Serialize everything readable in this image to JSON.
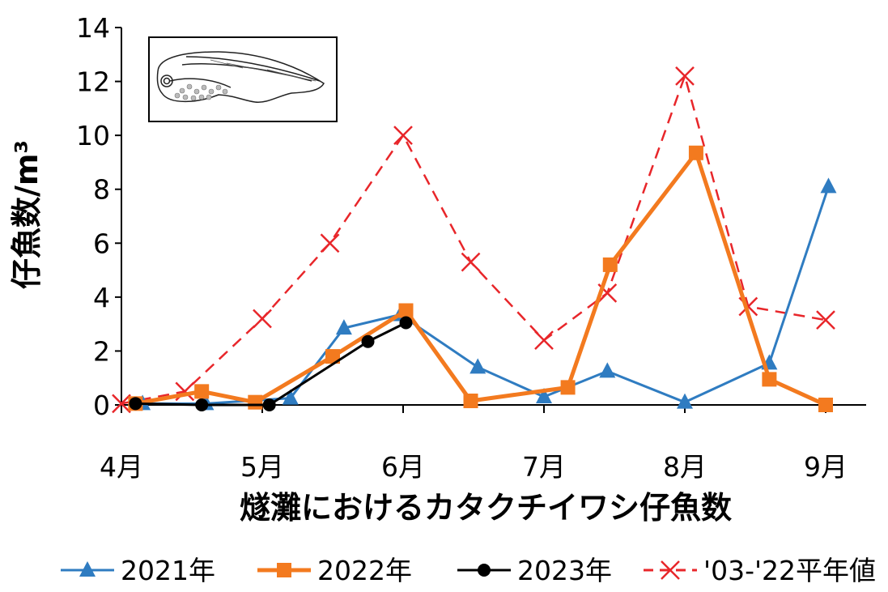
{
  "chart_data": {
    "type": "line",
    "title": "",
    "xlabel": "燧灘におけるカタクチイワシ仔魚数",
    "ylabel": "仔魚数/m³",
    "ylim": [
      0,
      14
    ],
    "yticks": [
      "0",
      "2",
      "4",
      "6",
      "8",
      "10",
      "12",
      "14"
    ],
    "xlim": [
      4,
      9
    ],
    "xticks": [
      {
        "value": 4,
        "label": "4月"
      },
      {
        "value": 5,
        "label": "5月"
      },
      {
        "value": 6,
        "label": "6月"
      },
      {
        "value": 7,
        "label": "7月"
      },
      {
        "value": 8,
        "label": "8月"
      },
      {
        "value": 9,
        "label": "9月"
      }
    ],
    "grid": false,
    "legend_position": "bottom",
    "inset_image": "fish-larva-illustration",
    "series": [
      {
        "name": "2021年",
        "color": "#2f7cc1",
        "marker": "triangle",
        "line": "solid",
        "points": [
          [
            4.15,
            0.05
          ],
          [
            4.6,
            0.05
          ],
          [
            5.2,
            0.25
          ],
          [
            5.58,
            2.85
          ],
          [
            5.98,
            3.35
          ],
          [
            6.53,
            1.4
          ],
          [
            7.0,
            0.3
          ],
          [
            7.45,
            1.25
          ],
          [
            8.0,
            0.1
          ],
          [
            8.6,
            1.55
          ],
          [
            9.02,
            8.1
          ]
        ]
      },
      {
        "name": "2022年",
        "color": "#f37a1f",
        "marker": "square",
        "line": "solid",
        "points": [
          [
            4.1,
            0.05
          ],
          [
            4.57,
            0.5
          ],
          [
            4.95,
            0.1
          ],
          [
            5.5,
            1.8
          ],
          [
            6.02,
            3.5
          ],
          [
            6.48,
            0.15
          ],
          [
            7.17,
            0.65
          ],
          [
            7.47,
            5.2
          ],
          [
            8.08,
            9.35
          ],
          [
            8.6,
            0.95
          ],
          [
            9.0,
            0.0
          ]
        ]
      },
      {
        "name": "2023年",
        "color": "#000000",
        "marker": "circle",
        "line": "solid",
        "points": [
          [
            4.1,
            0.05
          ],
          [
            4.57,
            0.0
          ],
          [
            5.05,
            0.0
          ],
          [
            5.75,
            2.35
          ],
          [
            6.02,
            3.05
          ]
        ]
      },
      {
        "name": "'03-'22平年値",
        "color": "#e8262a",
        "marker": "x",
        "line": "dashed",
        "points": [
          [
            4.0,
            0.05
          ],
          [
            4.45,
            0.5
          ],
          [
            5.0,
            3.2
          ],
          [
            5.48,
            6.0
          ],
          [
            6.0,
            10.0
          ],
          [
            6.48,
            5.3
          ],
          [
            7.0,
            2.4
          ],
          [
            7.45,
            4.15
          ],
          [
            8.0,
            12.2
          ],
          [
            8.45,
            3.65
          ],
          [
            9.0,
            3.15
          ]
        ]
      }
    ]
  }
}
